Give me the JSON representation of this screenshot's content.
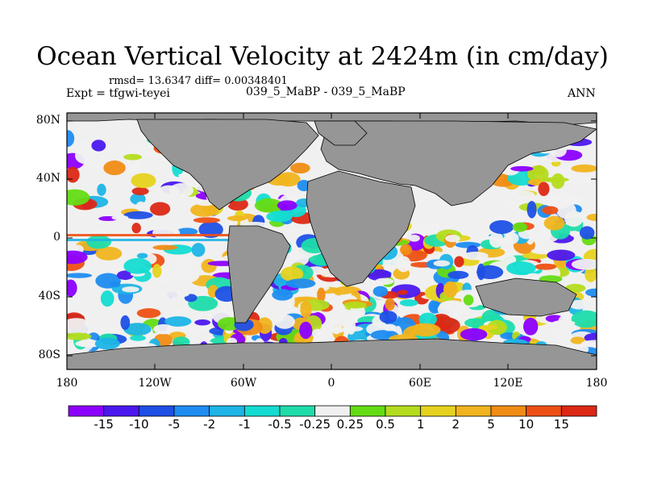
{
  "title": "Ocean Vertical Velocity at 2424m (in cm/day)",
  "stats": "rmsd= 13.6347 diff= 0.00348401",
  "experiment": "Expt = tfgwi-teyei",
  "cases": "039_5_MaBP - 039_5_MaBP",
  "season": "ANN",
  "lat_labels": [
    "80N",
    "40N",
    "0",
    "40S",
    "80S"
  ],
  "lon_labels": [
    "180",
    "120W",
    "60W",
    "0",
    "60E",
    "120E",
    "180"
  ],
  "colorbar": {
    "labels": [
      "-15",
      "-10",
      "-5",
      "-2",
      "-1",
      "-0.5",
      "-0.25",
      "0.25",
      "0.5",
      "1",
      "2",
      "5",
      "10",
      "15"
    ],
    "colors": [
      "#8c00ff",
      "#4b18ef",
      "#1e50e6",
      "#1e8cf0",
      "#1eb4e6",
      "#14dcd2",
      "#1edcaa",
      "#f0f0f0",
      "#64dc14",
      "#b4dc1e",
      "#e6d21e",
      "#f0b41e",
      "#f08c14",
      "#ee5014",
      "#dc2814"
    ]
  },
  "land_color": "#969696"
}
